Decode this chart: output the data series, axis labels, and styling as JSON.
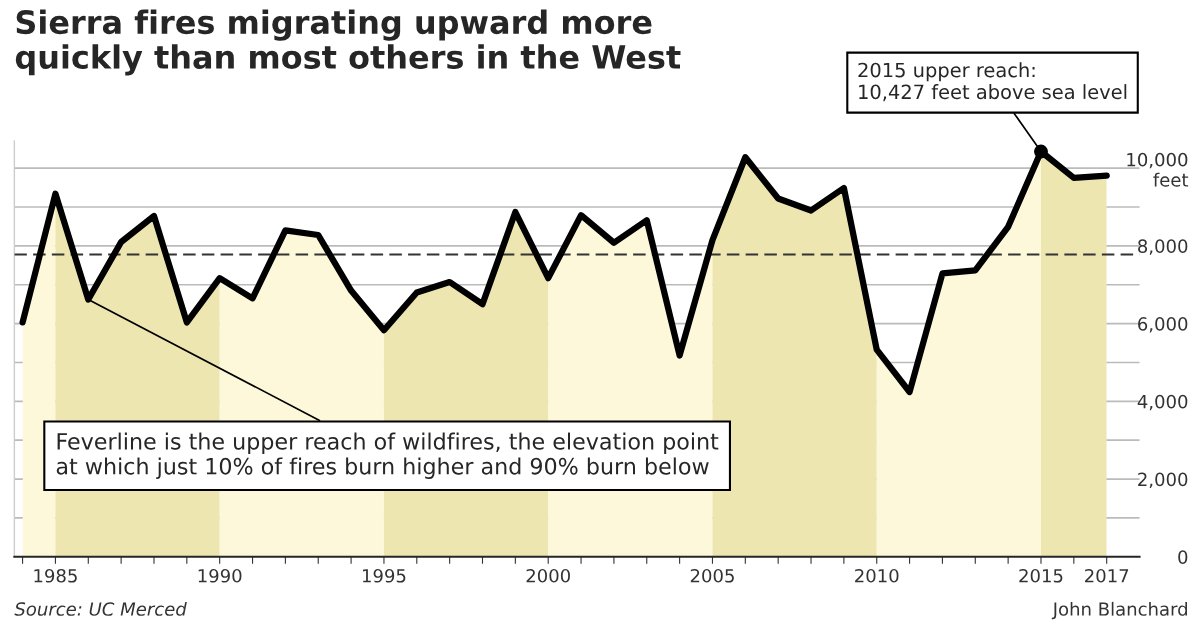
{
  "chart_data": {
    "type": "area",
    "title": "Sierra fires migrating upward more\nquickly than most others in the West",
    "x": [
      1984,
      1985,
      1986,
      1987,
      1988,
      1989,
      1990,
      1991,
      1992,
      1993,
      1994,
      1995,
      1996,
      1997,
      1998,
      1999,
      2000,
      2001,
      2002,
      2003,
      2004,
      2005,
      2006,
      2007,
      2008,
      2009,
      2010,
      2011,
      2012,
      2013,
      2014,
      2015,
      2016,
      2017
    ],
    "series": [
      {
        "color": "#000000",
        "values": [
          6030,
          9340,
          6620,
          8100,
          8770,
          6030,
          7170,
          6650,
          8400,
          8280,
          6850,
          5830,
          6800,
          7070,
          6500,
          8870,
          7170,
          8790,
          8080,
          8660,
          5180,
          8150,
          10280,
          9220,
          8910,
          9490,
          5330,
          4240,
          7290,
          7370,
          8490,
          10427,
          9750,
          9810
        ]
      }
    ],
    "xlim": [
      1983.75,
      2018
    ],
    "xticks": [
      {
        "value": 1984,
        "label": null
      },
      1985,
      {
        "value": 1986,
        "label": null
      },
      {
        "value": 1987,
        "label": null
      },
      {
        "value": 1988,
        "label": null
      },
      {
        "value": 1989,
        "label": null
      },
      1990,
      {
        "value": 1991,
        "label": null
      },
      {
        "value": 1992,
        "label": null
      },
      {
        "value": 1993,
        "label": null
      },
      {
        "value": 1994,
        "label": null
      },
      1995,
      {
        "value": 1996,
        "label": null
      },
      {
        "value": 1997,
        "label": null
      },
      {
        "value": 1998,
        "label": null
      },
      {
        "value": 1999,
        "label": null
      },
      2000,
      {
        "value": 2001,
        "label": null
      },
      {
        "value": 2002,
        "label": null
      },
      {
        "value": 2003,
        "label": null
      },
      {
        "value": 2004,
        "label": null
      },
      2005,
      {
        "value": 2006,
        "label": null
      },
      {
        "value": 2007,
        "label": null
      },
      {
        "value": 2008,
        "label": null
      },
      {
        "value": 2009,
        "label": null
      },
      2010,
      {
        "value": 2011,
        "label": null
      },
      {
        "value": 2012,
        "label": null
      },
      {
        "value": 2013,
        "label": null
      },
      {
        "value": 2014,
        "label": null
      },
      2015,
      {
        "value": 2016,
        "label": null
      },
      2017
    ],
    "ylim": [
      0,
      10700
    ],
    "yticks": [
      0,
      {
        "value": 1000,
        "label": null
      },
      {
        "value": 2000,
        "label": "2,000"
      },
      {
        "value": 3000,
        "label": null
      },
      {
        "value": 4000,
        "label": "4,000"
      },
      {
        "value": 5000,
        "label": null
      },
      {
        "value": 6000,
        "label": "6,000"
      },
      {
        "value": 7000,
        "label": null
      },
      {
        "value": 8000,
        "label": "8,000"
      },
      {
        "value": 9000,
        "label": null
      },
      {
        "value": 10000,
        "label": "10,000\nfeet"
      }
    ],
    "grid": "y",
    "bands": [
      {
        "axis": "x",
        "from": 1984,
        "to": 1985,
        "color": "#fcf8d9"
      },
      {
        "axis": "x",
        "from": 1985,
        "to": 1990,
        "color": "#e8de9f"
      },
      {
        "axis": "x",
        "from": 1990,
        "to": 1995,
        "color": "#fcf8d9"
      },
      {
        "axis": "x",
        "from": 1995,
        "to": 2000,
        "color": "#e8de9f"
      },
      {
        "axis": "x",
        "from": 2000,
        "to": 2005,
        "color": "#fcf8d9"
      },
      {
        "axis": "x",
        "from": 2005,
        "to": 2010,
        "color": "#e8de9f"
      },
      {
        "axis": "x",
        "from": 2010,
        "to": 2015,
        "color": "#fcf8d9"
      },
      {
        "axis": "x",
        "from": 2015,
        "to": 2017,
        "color": "#e8de9f"
      }
    ],
    "ref_lines": [
      {
        "axis": "y",
        "value": 7780,
        "line_style": "dashed",
        "color": "#333333"
      }
    ],
    "annotations": [
      {
        "text": "2015 upper reach:\n10,427 feet above sea level",
        "x": 2015,
        "y": 10427
      },
      {
        "text": "Feverline is the upper reach of wildfires, the elevation point\nat which just 10% of fires burn higher and 90% burn below",
        "x": 1986,
        "y": 6620
      },
      "Source: UC Merced",
      "John Blanchard"
    ]
  }
}
